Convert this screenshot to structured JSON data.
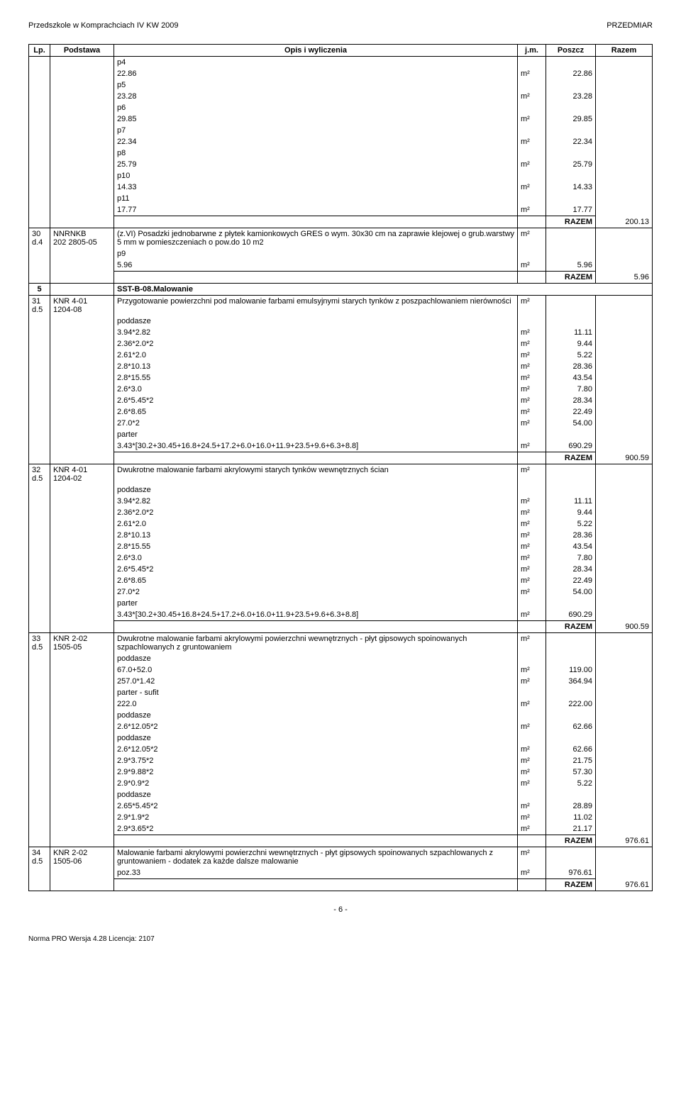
{
  "header": {
    "left": "Przedszkole w Komprachciach IV KW 2009",
    "right": "PRZEDMIAR"
  },
  "columns": {
    "lp": "Lp.",
    "podstawa": "Podstawa",
    "opis": "Opis i wyliczenia",
    "jm": "j.m.",
    "poszcz": "Poszcz",
    "razem": "Razem"
  },
  "top_rows": [
    {
      "opis": "p4",
      "jm": "",
      "poszcz": ""
    },
    {
      "opis": "22.86",
      "jm": "m²",
      "poszcz": "22.86"
    },
    {
      "opis": "p5",
      "jm": "",
      "poszcz": ""
    },
    {
      "opis": "23.28",
      "jm": "m²",
      "poszcz": "23.28"
    },
    {
      "opis": "p6",
      "jm": "",
      "poszcz": ""
    },
    {
      "opis": "29.85",
      "jm": "m²",
      "poszcz": "29.85"
    },
    {
      "opis": "p7",
      "jm": "",
      "poszcz": ""
    },
    {
      "opis": "22.34",
      "jm": "m²",
      "poszcz": "22.34"
    },
    {
      "opis": "p8",
      "jm": "",
      "poszcz": ""
    },
    {
      "opis": "25.79",
      "jm": "m²",
      "poszcz": "25.79"
    },
    {
      "opis": "p10",
      "jm": "",
      "poszcz": ""
    },
    {
      "opis": "14.33",
      "jm": "m²",
      "poszcz": "14.33"
    },
    {
      "opis": "p11",
      "jm": "",
      "poszcz": ""
    },
    {
      "opis": "17.77",
      "jm": "m²",
      "poszcz": "17.77"
    }
  ],
  "razem_29": {
    "label": "RAZEM",
    "value": "200.13"
  },
  "row30": {
    "lp": "30",
    "podst": "NNRNKB\n202 2805-05",
    "d4": "d.4",
    "opis": "(z.VI) Posadzki jednobarwne z płytek kamionkowych GRES o wym. 30x30 cm na zaprawie klejowej o grub.warstwy 5 mm w pomieszczeniach o pow.do 10 m2",
    "jm": "m²",
    "sub": [
      {
        "opis": "p9",
        "jm": "",
        "poszcz": ""
      },
      {
        "opis": "5.96",
        "jm": "m²",
        "poszcz": "5.96"
      }
    ],
    "razem_label": "RAZEM",
    "razem_value": "5.96"
  },
  "section5": {
    "lp": "5",
    "title": "SST-B-08.Malowanie"
  },
  "row31": {
    "lp": "31",
    "d5": "d.5",
    "podst": "KNR 4-01\n1204-08",
    "opis": "Przygotowanie powierzchni pod malowanie farbami emulsyjnymi starych tynków z poszpachlowaniem nierówności",
    "jm": "m²",
    "sub": [
      {
        "opis": "poddasze",
        "jm": "",
        "poszcz": ""
      },
      {
        "opis": "3.94*2.82",
        "jm": "m²",
        "poszcz": "11.11"
      },
      {
        "opis": "2.36*2.0*2",
        "jm": "m²",
        "poszcz": "9.44"
      },
      {
        "opis": "2.61*2.0",
        "jm": "m²",
        "poszcz": "5.22"
      },
      {
        "opis": "2.8*10.13",
        "jm": "m²",
        "poszcz": "28.36"
      },
      {
        "opis": "2.8*15.55",
        "jm": "m²",
        "poszcz": "43.54"
      },
      {
        "opis": "2.6*3.0",
        "jm": "m²",
        "poszcz": "7.80"
      },
      {
        "opis": "2.6*5.45*2",
        "jm": "m²",
        "poszcz": "28.34"
      },
      {
        "opis": "2.6*8.65",
        "jm": "m²",
        "poszcz": "22.49"
      },
      {
        "opis": "27.0*2",
        "jm": "m²",
        "poszcz": "54.00"
      },
      {
        "opis": "parter",
        "jm": "",
        "poszcz": ""
      },
      {
        "opis": "3.43*[30.2+30.45+16.8+24.5+17.2+6.0+16.0+11.9+23.5+9.6+6.3+8.8]",
        "jm": "m²",
        "poszcz": "690.29"
      }
    ],
    "razem_label": "RAZEM",
    "razem_value": "900.59"
  },
  "row32": {
    "lp": "32",
    "d5": "d.5",
    "podst": "KNR 4-01\n1204-02",
    "opis": "Dwukrotne malowanie farbami akrylowymi starych tynków wewnętrznych ścian",
    "jm": "m²",
    "sub": [
      {
        "opis": "poddasze",
        "jm": "",
        "poszcz": ""
      },
      {
        "opis": "3.94*2.82",
        "jm": "m²",
        "poszcz": "11.11"
      },
      {
        "opis": "2.36*2.0*2",
        "jm": "m²",
        "poszcz": "9.44"
      },
      {
        "opis": "2.61*2.0",
        "jm": "m²",
        "poszcz": "5.22"
      },
      {
        "opis": "2.8*10.13",
        "jm": "m²",
        "poszcz": "28.36"
      },
      {
        "opis": "2.8*15.55",
        "jm": "m²",
        "poszcz": "43.54"
      },
      {
        "opis": "2.6*3.0",
        "jm": "m²",
        "poszcz": "7.80"
      },
      {
        "opis": "2.6*5.45*2",
        "jm": "m²",
        "poszcz": "28.34"
      },
      {
        "opis": "2.6*8.65",
        "jm": "m²",
        "poszcz": "22.49"
      },
      {
        "opis": "27.0*2",
        "jm": "m²",
        "poszcz": "54.00"
      },
      {
        "opis": "parter",
        "jm": "",
        "poszcz": ""
      },
      {
        "opis": "3.43*[30.2+30.45+16.8+24.5+17.2+6.0+16.0+11.9+23.5+9.6+6.3+8.8]",
        "jm": "m²",
        "poszcz": "690.29"
      }
    ],
    "razem_label": "RAZEM",
    "razem_value": "900.59"
  },
  "row33": {
    "lp": "33",
    "d5": "d.5",
    "podst": "KNR 2-02\n1505-05",
    "opis": "Dwukrotne malowanie farbami  akrylowymi powierzchni wewnętrznych - płyt gipsowych spoinowanych szpachlowanych z gruntowaniem",
    "jm": "m²",
    "sub": [
      {
        "opis": "poddasze",
        "jm": "",
        "poszcz": ""
      },
      {
        "opis": "67.0+52.0",
        "jm": "m²",
        "poszcz": "119.00"
      },
      {
        "opis": "257.0*1.42",
        "jm": "m²",
        "poszcz": "364.94"
      },
      {
        "opis": "parter - sufit",
        "jm": "",
        "poszcz": ""
      },
      {
        "opis": "222.0",
        "jm": "m²",
        "poszcz": "222.00"
      },
      {
        "opis": "poddasze",
        "jm": "",
        "poszcz": ""
      },
      {
        "opis": "2.6*12.05*2",
        "jm": "m²",
        "poszcz": "62.66"
      },
      {
        "opis": "poddasze",
        "jm": "",
        "poszcz": ""
      },
      {
        "opis": "2.6*12.05*2",
        "jm": "m²",
        "poszcz": "62.66"
      },
      {
        "opis": "2.9*3.75*2",
        "jm": "m²",
        "poszcz": "21.75"
      },
      {
        "opis": "2.9*9.88*2",
        "jm": "m²",
        "poszcz": "57.30"
      },
      {
        "opis": "2.9*0.9*2",
        "jm": "m²",
        "poszcz": "5.22"
      },
      {
        "opis": "poddasze",
        "jm": "",
        "poszcz": ""
      },
      {
        "opis": "2.65*5.45*2",
        "jm": "m²",
        "poszcz": "28.89"
      },
      {
        "opis": "2.9*1.9*2",
        "jm": "m²",
        "poszcz": "11.02"
      },
      {
        "opis": "2.9*3.65*2",
        "jm": "m²",
        "poszcz": "21.17"
      }
    ],
    "razem_label": "RAZEM",
    "razem_value": "976.61"
  },
  "row34": {
    "lp": "34",
    "d5": "d.5",
    "podst": "KNR 2-02\n1505-06",
    "opis": "Malowanie farbami  akrylowymi powierzchni wewnętrznych - płyt gipsowych spoinowanych szpachlowanych z gruntowaniem - dodatek za każde dalsze malowanie",
    "jm": "m²",
    "sub": [
      {
        "opis": "poz.33",
        "jm": "m²",
        "poszcz": "976.61"
      }
    ],
    "razem_label": "RAZEM",
    "razem_value": "976.61"
  },
  "page_num": "- 6 -",
  "footer": "Norma PRO Wersja 4.28 Licencja: 2107"
}
